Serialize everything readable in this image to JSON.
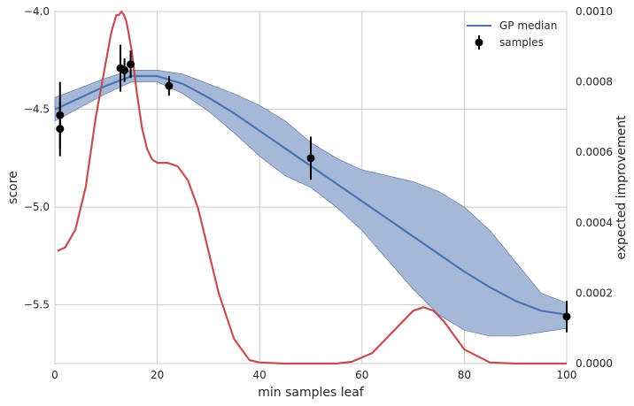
{
  "chart_data": {
    "type": "line",
    "xlabel": "min samples leaf",
    "ylabel": "score",
    "y2label": "expected improvement",
    "xlim": [
      0,
      100
    ],
    "ylim": [
      -5.8,
      -4.0
    ],
    "y2lim": [
      0.0,
      0.001
    ],
    "grid": true,
    "legend_position": "top-right",
    "x_ticks": [
      "0",
      "20",
      "40",
      "60",
      "80",
      "100"
    ],
    "y_ticks": [
      "−4.0",
      "−4.5",
      "−5.0",
      "−5.5"
    ],
    "y_tick_values": [
      -4.0,
      -4.5,
      -5.0,
      -5.5
    ],
    "y2_ticks": [
      "0.0000",
      "0.0002",
      "0.0004",
      "0.0006",
      "0.0008",
      "0.0010"
    ],
    "y2_tick_values": [
      0.0,
      0.0002,
      0.0004,
      0.0006,
      0.0008,
      0.001
    ],
    "colors": {
      "median": "#4c72b0",
      "band": "#a0b4d6",
      "ei": "#c44e52",
      "samples": "#000000",
      "grid": "#cccccc"
    },
    "series": [
      {
        "name": "GP median",
        "x": [
          0,
          10,
          15,
          20,
          25,
          30,
          35,
          40,
          45,
          50,
          55,
          60,
          65,
          70,
          75,
          80,
          85,
          90,
          95,
          100
        ],
        "y": [
          -4.5,
          -4.38,
          -4.33,
          -4.33,
          -4.37,
          -4.44,
          -4.52,
          -4.61,
          -4.7,
          -4.79,
          -4.88,
          -4.97,
          -5.06,
          -5.15,
          -5.24,
          -5.33,
          -5.41,
          -5.48,
          -5.53,
          -5.55
        ],
        "lower": [
          -4.56,
          -4.42,
          -4.36,
          -4.36,
          -4.42,
          -4.51,
          -4.62,
          -4.74,
          -4.84,
          -4.9,
          -5.0,
          -5.12,
          -5.27,
          -5.42,
          -5.55,
          -5.63,
          -5.66,
          -5.66,
          -5.64,
          -5.62
        ],
        "upper": [
          -4.44,
          -4.34,
          -4.3,
          -4.3,
          -4.32,
          -4.37,
          -4.42,
          -4.48,
          -4.56,
          -4.67,
          -4.75,
          -4.81,
          -4.84,
          -4.87,
          -4.92,
          -5.0,
          -5.12,
          -5.28,
          -5.44,
          -5.49
        ]
      },
      {
        "name": "samples",
        "points": [
          {
            "x": 1,
            "y": -4.53,
            "err": 0.17
          },
          {
            "x": 1,
            "y": -4.6,
            "err": 0.14
          },
          {
            "x": 12.8,
            "y": -4.29,
            "err": 0.12
          },
          {
            "x": 13.6,
            "y": -4.3,
            "err": 0.06
          },
          {
            "x": 14.8,
            "y": -4.27,
            "err": 0.07
          },
          {
            "x": 22.3,
            "y": -4.38,
            "err": 0.05
          },
          {
            "x": 50,
            "y": -4.75,
            "err": 0.11
          },
          {
            "x": 100,
            "y": -5.56,
            "err": 0.08
          }
        ]
      },
      {
        "name": "",
        "axis": "right",
        "x": [
          0.5,
          2,
          4,
          6,
          8,
          10,
          11,
          12,
          12.5,
          13,
          13.5,
          14,
          15,
          16,
          17,
          18,
          19,
          20,
          21,
          22,
          24,
          26,
          28,
          30,
          32,
          35,
          38,
          40,
          45,
          50,
          55,
          58,
          62,
          66,
          70,
          72,
          74,
          76,
          80,
          85,
          90,
          95,
          100
        ],
        "y": [
          0.00032,
          0.00033,
          0.00038,
          0.0005,
          0.0007,
          0.00086,
          0.00094,
          0.00099,
          0.00099,
          0.001,
          0.00099,
          0.00097,
          0.00089,
          0.00077,
          0.00067,
          0.00061,
          0.00058,
          0.00057,
          0.00057,
          0.00057,
          0.00056,
          0.00052,
          0.00044,
          0.00032,
          0.0002,
          7e-05,
          1e-05,
          3e-06,
          0.0,
          0.0,
          0.0,
          5e-06,
          3e-05,
          9e-05,
          0.00015,
          0.00016,
          0.00015,
          0.00012,
          4e-05,
          3e-06,
          0.0,
          0.0,
          0.0
        ]
      }
    ]
  }
}
